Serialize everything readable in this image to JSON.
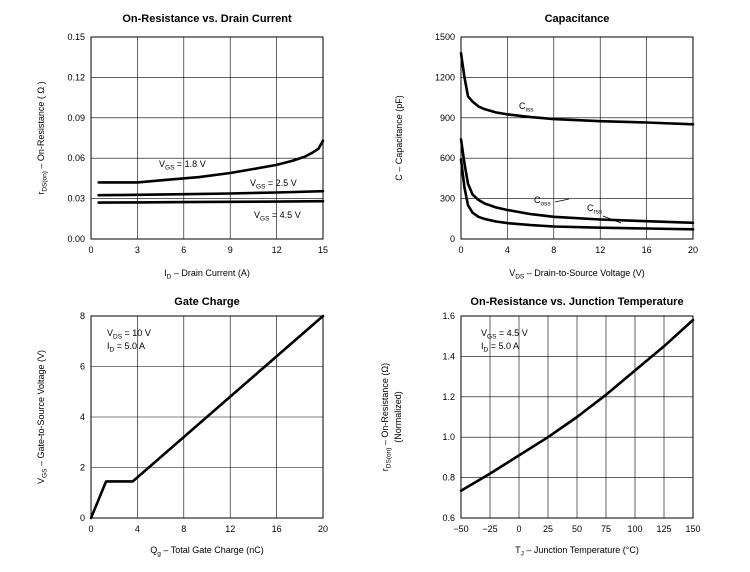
{
  "chart_data": [
    {
      "type": "line",
      "title": "On-Resistance vs. Drain Current",
      "ylabel": {
        "parts": [
          [
            "r",
            ""
          ],
          [
            "DS(on)",
            "sub"
          ],
          [
            "  –  On-Resistance ( Ω )",
            ""
          ]
        ]
      },
      "xlabel": {
        "parts": [
          [
            "I",
            ""
          ],
          [
            "D",
            "sub"
          ],
          [
            "  –  Drain Current (A)",
            ""
          ]
        ]
      },
      "xlim": [
        0,
        15
      ],
      "ylim": [
        0,
        0.15
      ],
      "xticks": [
        "0",
        "3",
        "6",
        "9",
        "12",
        "15"
      ],
      "yticks": [
        "0.00",
        "0.03",
        "0.06",
        "0.09",
        "0.12",
        "0.15"
      ],
      "series": [
        {
          "name": "V_GS = 1.8 V",
          "x": [
            0.5,
            3,
            5,
            7,
            9,
            10.5,
            12,
            13,
            13.8,
            14.3,
            14.7,
            15
          ],
          "y": [
            0.042,
            0.042,
            0.044,
            0.046,
            0.049,
            0.052,
            0.055,
            0.058,
            0.061,
            0.064,
            0.067,
            0.073
          ]
        },
        {
          "name": "V_GS = 2.5 V",
          "x": [
            0.5,
            3,
            6,
            9,
            12,
            15
          ],
          "y": [
            0.0325,
            0.0328,
            0.0333,
            0.0338,
            0.0345,
            0.0355
          ]
        },
        {
          "name": "V_GS = 4.5 V",
          "x": [
            0.5,
            3,
            6,
            9,
            12,
            15
          ],
          "y": [
            0.027,
            0.0272,
            0.0274,
            0.0276,
            0.0278,
            0.0281
          ]
        }
      ],
      "annotations": [
        {
          "parts": [
            [
              "V",
              ""
            ],
            [
              "GS",
              "sub"
            ],
            [
              " = 1.8 V",
              ""
            ]
          ]
        },
        {
          "parts": [
            [
              "V",
              ""
            ],
            [
              "GS",
              "sub"
            ],
            [
              " = 2.5 V",
              ""
            ]
          ]
        },
        {
          "parts": [
            [
              "V",
              ""
            ],
            [
              "GS",
              "sub"
            ],
            [
              " = 4.5 V",
              ""
            ]
          ]
        }
      ],
      "grid": true
    },
    {
      "type": "line",
      "title": "Capacitance",
      "ylabel": {
        "parts": [
          [
            "C  –  Capacitance (pF)",
            ""
          ]
        ]
      },
      "xlabel": {
        "parts": [
          [
            "V",
            ""
          ],
          [
            "DS",
            "sub"
          ],
          [
            "  –  Drain-to-Source Voltage (V)",
            ""
          ]
        ]
      },
      "xlim": [
        0,
        20
      ],
      "ylim": [
        0,
        1500
      ],
      "xticks": [
        "0",
        "4",
        "8",
        "12",
        "16",
        "20"
      ],
      "yticks": [
        "0",
        "300",
        "600",
        "900",
        "1200",
        "1500"
      ],
      "series": [
        {
          "name": "C_iss",
          "x": [
            0,
            0.3,
            0.6,
            1,
            1.5,
            2,
            3,
            4,
            6,
            8,
            12,
            16,
            20
          ],
          "y": [
            1380,
            1200,
            1060,
            1020,
            985,
            965,
            940,
            925,
            905,
            890,
            875,
            865,
            852
          ]
        },
        {
          "name": "C_oss",
          "x": [
            0,
            0.3,
            0.6,
            1,
            1.5,
            2,
            3,
            4,
            6,
            8,
            12,
            16,
            20
          ],
          "y": [
            740,
            560,
            410,
            330,
            290,
            265,
            235,
            215,
            185,
            165,
            145,
            132,
            120
          ]
        },
        {
          "name": "C_rss",
          "x": [
            0,
            0.3,
            0.6,
            1,
            1.5,
            2,
            3,
            4,
            6,
            8,
            12,
            16,
            20
          ],
          "y": [
            590,
            380,
            250,
            195,
            165,
            150,
            130,
            118,
            103,
            93,
            84,
            78,
            72
          ]
        }
      ],
      "annotations": [
        {
          "parts": [
            [
              "C",
              ""
            ],
            [
              "iss",
              "sub"
            ]
          ]
        },
        {
          "parts": [
            [
              "C",
              ""
            ],
            [
              "oss",
              "sub"
            ]
          ]
        },
        {
          "parts": [
            [
              "C",
              ""
            ],
            [
              "rss",
              "sub"
            ]
          ]
        }
      ],
      "grid": true
    },
    {
      "type": "line",
      "title": "Gate Charge",
      "ylabel": {
        "parts": [
          [
            "V",
            ""
          ],
          [
            "GS",
            "sub"
          ],
          [
            "  –  Gate-to-Source Voltage (V)",
            ""
          ]
        ]
      },
      "xlabel": {
        "parts": [
          [
            "Q",
            ""
          ],
          [
            "g",
            "sub"
          ],
          [
            "  –  Total Gate Charge (nC)",
            ""
          ]
        ]
      },
      "xlim": [
        0,
        20
      ],
      "ylim": [
        0,
        8
      ],
      "xticks": [
        "0",
        "4",
        "8",
        "12",
        "16",
        "20"
      ],
      "yticks": [
        "0",
        "2",
        "4",
        "6",
        "8"
      ],
      "series": [
        {
          "name": "",
          "x": [
            0,
            1.3,
            3.6,
            20
          ],
          "y": [
            0,
            1.45,
            1.45,
            8
          ]
        }
      ],
      "annotations": [
        {
          "parts": [
            [
              "V",
              ""
            ],
            [
              "DS",
              "sub"
            ],
            [
              " = 10 V",
              ""
            ]
          ]
        },
        {
          "parts": [
            [
              "I",
              ""
            ],
            [
              "D",
              "sub"
            ],
            [
              " = 5.0 A",
              ""
            ]
          ]
        }
      ],
      "grid": true
    },
    {
      "type": "line",
      "title": "On-Resistance vs. Junction Temperature",
      "ylabel": {
        "parts": [
          [
            "r",
            ""
          ],
          [
            "DS(on)",
            "sub"
          ],
          [
            "  –  On-Resistance (Ω)",
            ""
          ]
        ]
      },
      "ylabel2": "(Normalized)",
      "xlabel": {
        "parts": [
          [
            "T",
            ""
          ],
          [
            "J",
            "sub"
          ],
          [
            " – Junction Temperature (°C)",
            ""
          ]
        ]
      },
      "xlim": [
        -50,
        150
      ],
      "ylim": [
        0.6,
        1.6
      ],
      "xticks": [
        "−50",
        "−25",
        "0",
        "25",
        "50",
        "75",
        "100",
        "125",
        "150"
      ],
      "yticks": [
        "0.6",
        "0.8",
        "1.0",
        "1.2",
        "1.4",
        "1.6"
      ],
      "series": [
        {
          "name": "",
          "x": [
            -50,
            -25,
            0,
            25,
            50,
            75,
            100,
            125,
            150
          ],
          "y": [
            0.735,
            0.82,
            0.91,
            1.0,
            1.1,
            1.21,
            1.33,
            1.45,
            1.58
          ]
        }
      ],
      "annotations": [
        {
          "parts": [
            [
              "V",
              ""
            ],
            [
              "GS",
              "sub"
            ],
            [
              " = 4.5 V",
              ""
            ]
          ]
        },
        {
          "parts": [
            [
              "I",
              ""
            ],
            [
              "D",
              "sub"
            ],
            [
              " = 5.0 A",
              ""
            ]
          ]
        }
      ],
      "grid": true
    }
  ]
}
